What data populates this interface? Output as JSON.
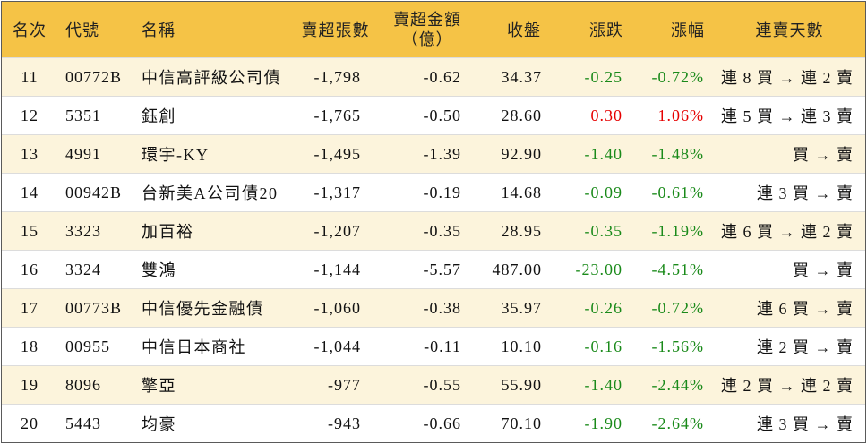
{
  "colors": {
    "header_bg": "#F5C346",
    "stripe_bg": "#FCF4DC",
    "plain_bg": "#FFFFFF",
    "down": "#1A8A1A",
    "up": "#E60000",
    "border": "#5A5A5A"
  },
  "table": {
    "header": {
      "rank": "名次",
      "code": "代號",
      "name": "名稱",
      "sell_lots": "賣超張數",
      "sell_amount": "賣超金額",
      "sell_amount_unit": "（億）",
      "close": "收盤",
      "change": "漲跌",
      "change_pct": "漲幅",
      "sell_days": "連賣天數"
    },
    "rows": [
      {
        "rank": "11",
        "code": "00772B",
        "name": "中信高評級公司債",
        "sell_lots": "-1,798",
        "sell_amount": "-0.62",
        "close": "34.37",
        "change": "-0.25",
        "change_pct": "-0.72%",
        "sell_days": "連 8 買 → 連 2 賣"
      },
      {
        "rank": "12",
        "code": "5351",
        "name": "鈺創",
        "sell_lots": "-1,765",
        "sell_amount": "-0.50",
        "close": "28.60",
        "change": "0.30",
        "change_pct": "1.06%",
        "sell_days": "連 5 買 → 連 3 賣"
      },
      {
        "rank": "13",
        "code": "4991",
        "name": "環宇-KY",
        "sell_lots": "-1,495",
        "sell_amount": "-1.39",
        "close": "92.90",
        "change": "-1.40",
        "change_pct": "-1.48%",
        "sell_days": "買 → 賣"
      },
      {
        "rank": "14",
        "code": "00942B",
        "name": "台新美A公司債20",
        "sell_lots": "-1,317",
        "sell_amount": "-0.19",
        "close": "14.68",
        "change": "-0.09",
        "change_pct": "-0.61%",
        "sell_days": "連 3 買 → 賣"
      },
      {
        "rank": "15",
        "code": "3323",
        "name": "加百裕",
        "sell_lots": "-1,207",
        "sell_amount": "-0.35",
        "close": "28.95",
        "change": "-0.35",
        "change_pct": "-1.19%",
        "sell_days": "連 6 買 → 連 2 賣"
      },
      {
        "rank": "16",
        "code": "3324",
        "name": "雙鴻",
        "sell_lots": "-1,144",
        "sell_amount": "-5.57",
        "close": "487.00",
        "change": "-23.00",
        "change_pct": "-4.51%",
        "sell_days": "買 → 賣"
      },
      {
        "rank": "17",
        "code": "00773B",
        "name": "中信優先金融債",
        "sell_lots": "-1,060",
        "sell_amount": "-0.38",
        "close": "35.97",
        "change": "-0.26",
        "change_pct": "-0.72%",
        "sell_days": "連 6 買 → 賣"
      },
      {
        "rank": "18",
        "code": "00955",
        "name": "中信日本商社",
        "sell_lots": "-1,044",
        "sell_amount": "-0.11",
        "close": "10.10",
        "change": "-0.16",
        "change_pct": "-1.56%",
        "sell_days": "連 2 買 → 賣"
      },
      {
        "rank": "19",
        "code": "8096",
        "name": "擎亞",
        "sell_lots": "-977",
        "sell_amount": "-0.55",
        "close": "55.90",
        "change": "-1.40",
        "change_pct": "-2.44%",
        "sell_days": "連 2 買 → 連 2 賣"
      },
      {
        "rank": "20",
        "code": "5443",
        "name": "均豪",
        "sell_lots": "-943",
        "sell_amount": "-0.66",
        "close": "70.10",
        "change": "-1.90",
        "change_pct": "-2.64%",
        "sell_days": "連 3 買 → 賣"
      }
    ]
  }
}
